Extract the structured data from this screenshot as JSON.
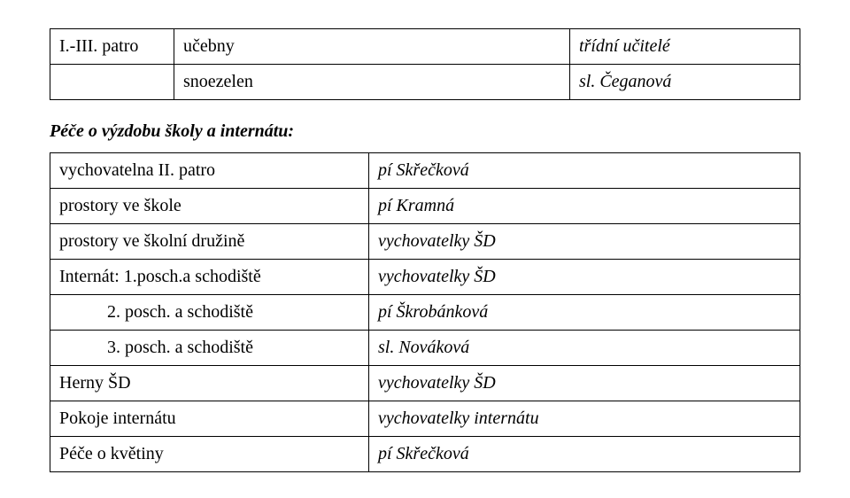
{
  "table1": {
    "rows": [
      {
        "col1": "I.-III. patro",
        "col2": "učebny",
        "col3": "třídní učitelé"
      },
      {
        "col1": "",
        "col2": "snoezelen",
        "col3": "sl. Čeganová"
      }
    ]
  },
  "subheading": "Péče o výzdobu školy a internátu:",
  "table2": {
    "rows": [
      {
        "col1": "vychovatelna II. patro",
        "col2": "pí Skřečková",
        "indent": false
      },
      {
        "col1": "prostory ve škole",
        "col2": "pí Kramná",
        "indent": false
      },
      {
        "col1": "prostory ve školní družině",
        "col2": "vychovatelky ŠD",
        "indent": false
      },
      {
        "col1": "Internát: 1.posch.a schodiště",
        "col2": "vychovatelky ŠD",
        "indent": false
      },
      {
        "col1": "2. posch. a schodiště",
        "col2": "pí Škrobánková",
        "indent": true
      },
      {
        "col1": "3. posch. a schodiště",
        "col2": "sl. Nováková",
        "indent": true
      },
      {
        "col1": "Herny ŠD",
        "col2": "vychovatelky ŠD",
        "indent": false
      },
      {
        "col1": "Pokoje internátu",
        "col2": "vychovatelky internátu",
        "indent": false
      },
      {
        "col1": "Péče o květiny",
        "col2": "pí Skřečková",
        "indent": false
      }
    ]
  }
}
